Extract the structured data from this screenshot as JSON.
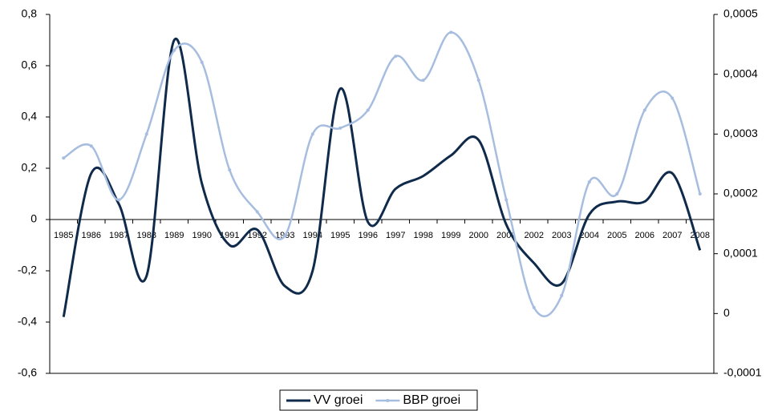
{
  "chart_data": {
    "type": "line",
    "categories": [
      "1985",
      "1986",
      "1987",
      "1988",
      "1989",
      "1990",
      "1991",
      "1992",
      "1993",
      "1994",
      "1995",
      "1996",
      "1997",
      "1998",
      "1999",
      "2000",
      "2001",
      "2002",
      "2003",
      "2004",
      "2005",
      "2006",
      "2007",
      "2008"
    ],
    "ylim": [
      -0.6,
      0.8
    ],
    "yticks": [
      {
        "value": -0.6,
        "label": "-0,6"
      },
      {
        "value": -0.4,
        "label": "-0,4"
      },
      {
        "value": -0.2,
        "label": "-0,2"
      },
      0,
      {
        "value": 0.2,
        "label": "0,2"
      },
      {
        "value": 0.4,
        "label": "0,4"
      },
      {
        "value": 0.6,
        "label": "0,6"
      },
      {
        "value": 0.8,
        "label": "0,8"
      }
    ],
    "y2lim": [
      -0.0001,
      0.0005
    ],
    "y2ticks": [
      {
        "value": -0.0001,
        "label": "-0,0001"
      },
      0,
      {
        "value": 0.0001,
        "label": "0,0001"
      },
      {
        "value": 0.0002,
        "label": "0,0002"
      },
      {
        "value": 0.0003,
        "label": "0,0003"
      },
      {
        "value": 0.0004,
        "label": "0,0004"
      },
      {
        "value": 0.0005,
        "label": "0,0005"
      }
    ],
    "series": [
      {
        "name": "VV groei",
        "color": "#0f2a4a",
        "values": [
          -0.38,
          0.18,
          0.06,
          -0.22,
          0.7,
          0.14,
          -0.1,
          -0.04,
          -0.26,
          -0.2,
          0.51,
          -0.01,
          0.12,
          0.17,
          0.25,
          0.31,
          -0.02,
          -0.17,
          -0.25,
          0.02,
          0.07,
          0.07,
          0.18,
          -0.12
        ]
      },
      {
        "name": "BBP groei",
        "color": "#a7bde0",
        "axis": "y2",
        "values": [
          0.00026,
          0.00028,
          0.00019,
          0.0003,
          0.00044,
          0.00042,
          0.00024,
          0.00017,
          0.00013,
          0.0003,
          0.00031,
          0.00034,
          0.00043,
          0.00039,
          0.00047,
          0.00039,
          0.00019,
          1e-05,
          3e-05,
          0.00022,
          0.0002,
          0.00034,
          0.00036,
          0.0002
        ]
      }
    ],
    "legend": "bottom"
  }
}
